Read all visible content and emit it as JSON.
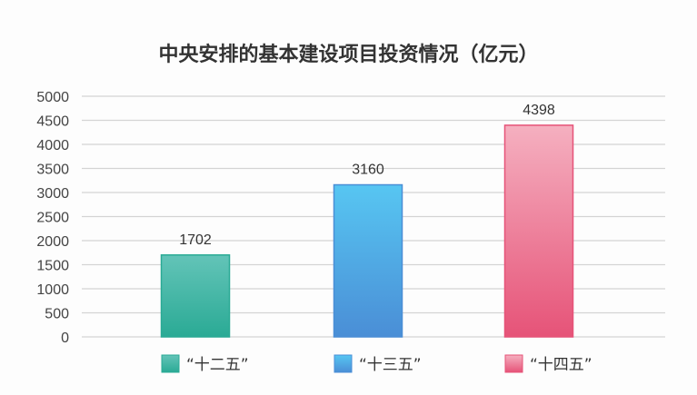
{
  "chart_data": {
    "type": "bar",
    "title": "中央安排的基本建设项目投资情况（亿元）",
    "categories": [
      "“十二五”",
      "“十三五”",
      "“十四五”"
    ],
    "values": [
      1702,
      3160,
      4398
    ],
    "ylim": [
      0,
      5000
    ],
    "yticks": [
      "0",
      "500",
      "1000",
      "1500",
      "2000",
      "2500",
      "3000",
      "3500",
      "4000",
      "4500",
      "5000"
    ],
    "grid": true,
    "legend_position": "bottom",
    "colors": [
      [
        "#63c4b8",
        "#2aaa95"
      ],
      [
        "#57c6f2",
        "#4a8ed6"
      ],
      [
        "#f5b0c0",
        "#e65378"
      ]
    ]
  }
}
